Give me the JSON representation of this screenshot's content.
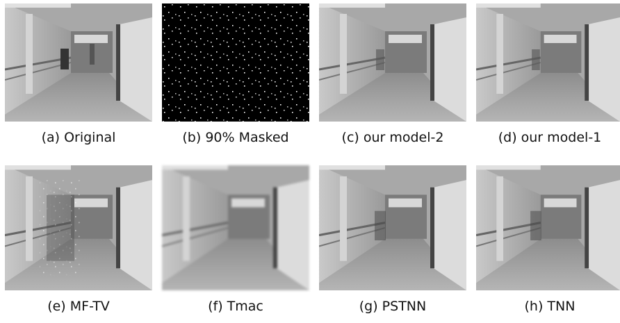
{
  "panels": [
    {
      "label": "(a) Original"
    },
    {
      "label": "(b) 90% Masked"
    },
    {
      "label": "(c) our model-2"
    },
    {
      "label": "(d) our model-1"
    },
    {
      "label": "(e) MF-TV"
    },
    {
      "label": "(f) Tmac"
    },
    {
      "label": "(g) PSTNN"
    },
    {
      "label": "(h) TNN"
    }
  ]
}
